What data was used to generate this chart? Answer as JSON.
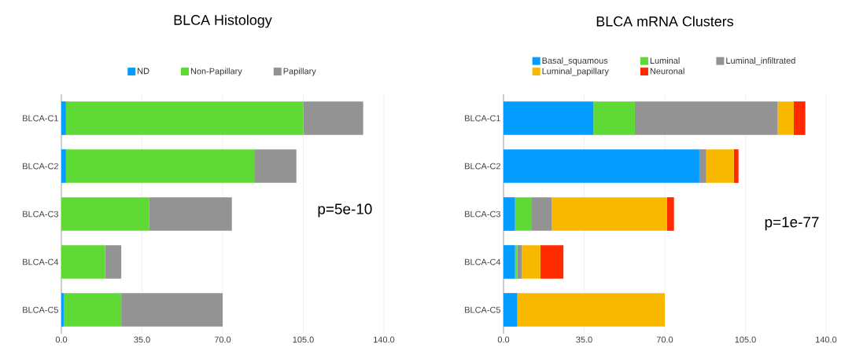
{
  "chart_data": [
    {
      "type": "bar",
      "orientation": "horizontal",
      "stacked": true,
      "title": "BLCA Histology",
      "categories": [
        "BLCA-C1",
        "BLCA-C2",
        "BLCA-C3",
        "BLCA-C4",
        "BLCA-C5"
      ],
      "series": [
        {
          "name": "ND",
          "color": "#049cff",
          "values": [
            2,
            2,
            0,
            0,
            1
          ]
        },
        {
          "name": "Non-Papillary",
          "color": "#5fd935",
          "values": [
            103,
            82,
            38,
            19,
            25
          ]
        },
        {
          "name": "Papillary",
          "color": "#939393",
          "values": [
            26,
            18,
            36,
            7,
            44
          ]
        }
      ],
      "xlim": [
        0,
        140
      ],
      "xticks": [
        {
          "value": 0,
          "label": "0.0"
        },
        {
          "value": 35,
          "label": "35.0"
        },
        {
          "value": 70,
          "label": "70.0"
        },
        {
          "value": 105,
          "label": "105.0"
        },
        {
          "value": 140,
          "label": "140.0"
        }
      ],
      "grid": "x",
      "legend": "top",
      "annotations": [
        "p=5e-10"
      ]
    },
    {
      "type": "bar",
      "orientation": "horizontal",
      "stacked": true,
      "title": "BLCA mRNA Clusters",
      "categories": [
        "BLCA-C1",
        "BLCA-C2",
        "BLCA-C3",
        "BLCA-C4",
        "BLCA-C5"
      ],
      "series": [
        {
          "name": "Basal_squamous",
          "color": "#049cff",
          "values": [
            39,
            85,
            5,
            5,
            6
          ]
        },
        {
          "name": "Luminal",
          "color": "#5fd935",
          "values": [
            18,
            0,
            7,
            1,
            0
          ]
        },
        {
          "name": "Luminal_infiltrated",
          "color": "#939393",
          "values": [
            62,
            3,
            9,
            2,
            0
          ]
        },
        {
          "name": "Luminal_papillary",
          "color": "#f8b800",
          "values": [
            7,
            12,
            50,
            8,
            64
          ]
        },
        {
          "name": "Neuronal",
          "color": "#ff2a00",
          "values": [
            5,
            2,
            3,
            10,
            0
          ]
        }
      ],
      "xlim": [
        0,
        140
      ],
      "xticks": [
        {
          "value": 0,
          "label": "0.0"
        },
        {
          "value": 35,
          "label": "35.0"
        },
        {
          "value": 70,
          "label": "70.0"
        },
        {
          "value": 105,
          "label": "105.0"
        },
        {
          "value": 140,
          "label": "140.0"
        }
      ],
      "grid": "x",
      "legend": "top",
      "annotations": [
        "p=1e-77"
      ]
    }
  ]
}
